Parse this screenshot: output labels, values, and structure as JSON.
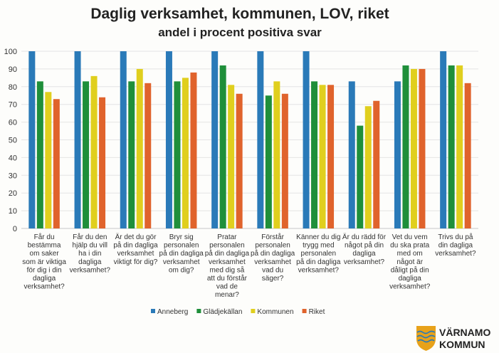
{
  "chart_data": {
    "type": "bar",
    "title": "Daglig verksamhet, kommunen, LOV, riket",
    "subtitle": "andel i procent positiva svar",
    "ylim": [
      0,
      100
    ],
    "yticks": [
      0,
      10,
      20,
      30,
      40,
      50,
      60,
      70,
      80,
      90,
      100
    ],
    "grid": true,
    "legend_position": "bottom",
    "categories": [
      [
        "Får du",
        "bestämma",
        "om saker",
        "som är viktiga",
        "för dig i din",
        "dagliga",
        "verksamhet?"
      ],
      [
        "Får du den",
        "hjälp du vill",
        "ha i din",
        "dagliga",
        "verksamhet?"
      ],
      [
        "Är det du gör",
        "på din dagliga",
        "verksamhet",
        "viktigt för dig?"
      ],
      [
        "Bryr sig",
        "personalen",
        "på din dagliga",
        "verksamhet",
        "om dig?"
      ],
      [
        "Pratar",
        "personalen",
        "på din dagliga",
        "verksamhet",
        "med dig så",
        "att du förstår",
        "vad de",
        "menar?"
      ],
      [
        "Förstår",
        "personalen",
        "på din dagliga",
        "verksamhet",
        "vad du",
        "säger?"
      ],
      [
        "Känner du dig",
        "trygg med",
        "personalen",
        "på din dagliga",
        "verksamhet?"
      ],
      [
        "Är du rädd för",
        "något på din",
        "dagliga",
        "verksamhet?"
      ],
      [
        "Vet du vem",
        "du ska prata",
        "med om",
        "något är",
        "dåligt på din",
        "dagliga",
        "verksamhet?"
      ],
      [
        "Trivs du på",
        "din dagliga",
        "verksamhet?"
      ]
    ],
    "series": [
      {
        "name": "Anneberg",
        "color": "#2a7ab8",
        "values": [
          100,
          100,
          100,
          100,
          100,
          100,
          100,
          83,
          83,
          100
        ]
      },
      {
        "name": "Glädjekällan",
        "color": "#1f8f3a",
        "values": [
          83,
          83,
          83,
          83,
          92,
          75,
          83,
          58,
          92,
          92
        ]
      },
      {
        "name": "Kommunen",
        "color": "#e0cf1e",
        "values": [
          77,
          86,
          90,
          85,
          81,
          83,
          81,
          69,
          90,
          92
        ]
      },
      {
        "name": "Riket",
        "color": "#e0632c",
        "values": [
          73,
          74,
          82,
          88,
          76,
          76,
          81,
          72,
          90,
          82
        ]
      }
    ]
  },
  "logo": {
    "line1": "VÄRNAMO",
    "line2": "KOMMUN",
    "shield_color": "#e8a21a",
    "wave_color": "#2a7ab8"
  }
}
